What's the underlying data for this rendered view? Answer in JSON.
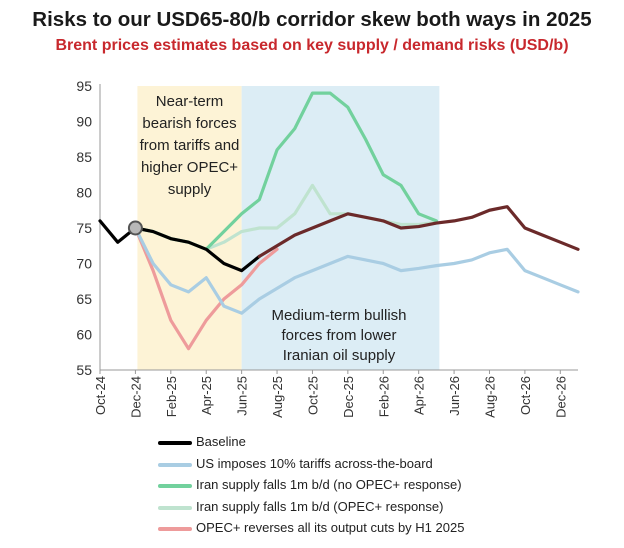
{
  "title": "Risks to our USD65-80/b corridor skew both ways in 2025",
  "subtitle": "Brent prices estimates based on key supply / demand risks (USD/b)",
  "chart_data": {
    "type": "line",
    "ylim": [
      55,
      95
    ],
    "yticks": [
      55,
      60,
      65,
      70,
      75,
      80,
      85,
      90,
      95
    ],
    "x_months": [
      "Oct-24",
      "Nov-24",
      "Dec-24",
      "Jan-25",
      "Feb-25",
      "Mar-25",
      "Apr-25",
      "May-25",
      "Jun-25",
      "Jul-25",
      "Aug-25",
      "Sep-25",
      "Oct-25",
      "Nov-25",
      "Dec-25",
      "Jan-26",
      "Feb-26",
      "Mar-26",
      "Apr-26",
      "May-26",
      "Jun-26",
      "Jul-26",
      "Aug-26",
      "Sep-26",
      "Oct-26",
      "Nov-26",
      "Dec-26",
      "Jan-27"
    ],
    "xtick_labels": [
      "Oct-24",
      "Dec-24",
      "Feb-25",
      "Apr-25",
      "Jun-25",
      "Aug-25",
      "Oct-25",
      "Dec-25",
      "Feb-26",
      "Apr-26",
      "Jun-26",
      "Aug-26",
      "Oct-26",
      "Dec-26"
    ],
    "regions": [
      {
        "start": "Dec-24",
        "end": "Jun-25",
        "color": "#fdf3d6",
        "label": [
          "Near-term",
          "bearish forces",
          "from tariffs and",
          "higher OPEC+",
          "supply"
        ]
      },
      {
        "start": "Jun-25",
        "end": "May-26",
        "color": "#dcedf5",
        "label": [
          "Medium-term bullish",
          "forces from lower",
          "Iranian oil supply"
        ]
      }
    ],
    "marker": {
      "x": "Dec-24",
      "y": 75
    },
    "series": [
      {
        "name": "Baseline",
        "color": "#000000",
        "dark_color": "#6b2a2a",
        "x": [
          "Oct-24",
          "Nov-24",
          "Dec-24",
          "Jan-25",
          "Feb-25",
          "Mar-25",
          "Apr-25",
          "May-25",
          "Jun-25",
          "Jul-25",
          "Aug-25",
          "Sep-25",
          "Oct-25",
          "Nov-25",
          "Dec-25",
          "Jan-26",
          "Feb-26",
          "Mar-26",
          "Apr-26",
          "May-26",
          "Jun-26",
          "Jul-26",
          "Aug-26",
          "Sep-26",
          "Oct-26",
          "Nov-26",
          "Dec-26",
          "Jan-27"
        ],
        "values": [
          76,
          73,
          75,
          74.5,
          73.5,
          73,
          72,
          70,
          69,
          71,
          72.5,
          74,
          75,
          76,
          77,
          76.5,
          76,
          75,
          75.2,
          75.7,
          76,
          76.5,
          77.5,
          78,
          75,
          74,
          73,
          72
        ]
      },
      {
        "name": "US imposes 10% tariffs across-the-board",
        "color": "#a9cde3",
        "x": [
          "Dec-24",
          "Jan-25",
          "Feb-25",
          "Mar-25",
          "Apr-25",
          "May-25",
          "Jun-25",
          "Jul-25",
          "Aug-25",
          "Sep-25",
          "Oct-25",
          "Nov-25",
          "Dec-25",
          "Jan-26",
          "Feb-26",
          "Mar-26",
          "Apr-26",
          "May-26",
          "Jun-26",
          "Jul-26",
          "Aug-26",
          "Sep-26",
          "Oct-26",
          "Nov-26",
          "Dec-26",
          "Jan-27"
        ],
        "values": [
          75,
          70,
          67,
          66,
          68,
          64,
          63,
          65,
          66.5,
          68,
          69,
          70,
          71,
          70.5,
          70,
          69,
          69.3,
          69.7,
          70,
          70.5,
          71.5,
          72,
          69,
          68,
          67,
          66
        ]
      },
      {
        "name": "Iran supply falls 1m b/d (no OPEC+ response)",
        "color": "#72d19d",
        "x": [
          "Dec-24",
          "Jan-25",
          "Feb-25",
          "Mar-25",
          "Apr-25",
          "May-25",
          "Jun-25",
          "Jul-25",
          "Aug-25",
          "Sep-25",
          "Oct-25",
          "Nov-25",
          "Dec-25",
          "Jan-26",
          "Feb-26",
          "Mar-26",
          "Apr-26",
          "May-26"
        ],
        "values": [
          75,
          74.5,
          73.5,
          73,
          72,
          74.5,
          77,
          79,
          86,
          89,
          94,
          94,
          92,
          87.5,
          82.5,
          81,
          77,
          76
        ]
      },
      {
        "name": "Iran supply falls 1m b/d (OPEC+ response)",
        "color": "#bfe3cf",
        "x": [
          "Dec-24",
          "Jan-25",
          "Feb-25",
          "Mar-25",
          "Apr-25",
          "May-25",
          "Jun-25",
          "Jul-25",
          "Aug-25",
          "Sep-25",
          "Oct-25",
          "Nov-25",
          "Dec-25",
          "Jan-26",
          "Feb-26",
          "Mar-26",
          "Apr-26",
          "May-26"
        ],
        "values": [
          75,
          74.5,
          73.5,
          73,
          72,
          73,
          74.5,
          75,
          75,
          77,
          81,
          77,
          77,
          76.5,
          76,
          75.5,
          75.5,
          75.8
        ]
      },
      {
        "name": "OPEC+ reverses all its output cuts by H1 2025",
        "color": "#ee9b9b",
        "x": [
          "Dec-24",
          "Jan-25",
          "Feb-25",
          "Mar-25",
          "Apr-25",
          "May-25",
          "Jun-25",
          "Jul-25",
          "Aug-25"
        ],
        "values": [
          75,
          69,
          62,
          58,
          62,
          65,
          67,
          70,
          72
        ]
      }
    ]
  }
}
